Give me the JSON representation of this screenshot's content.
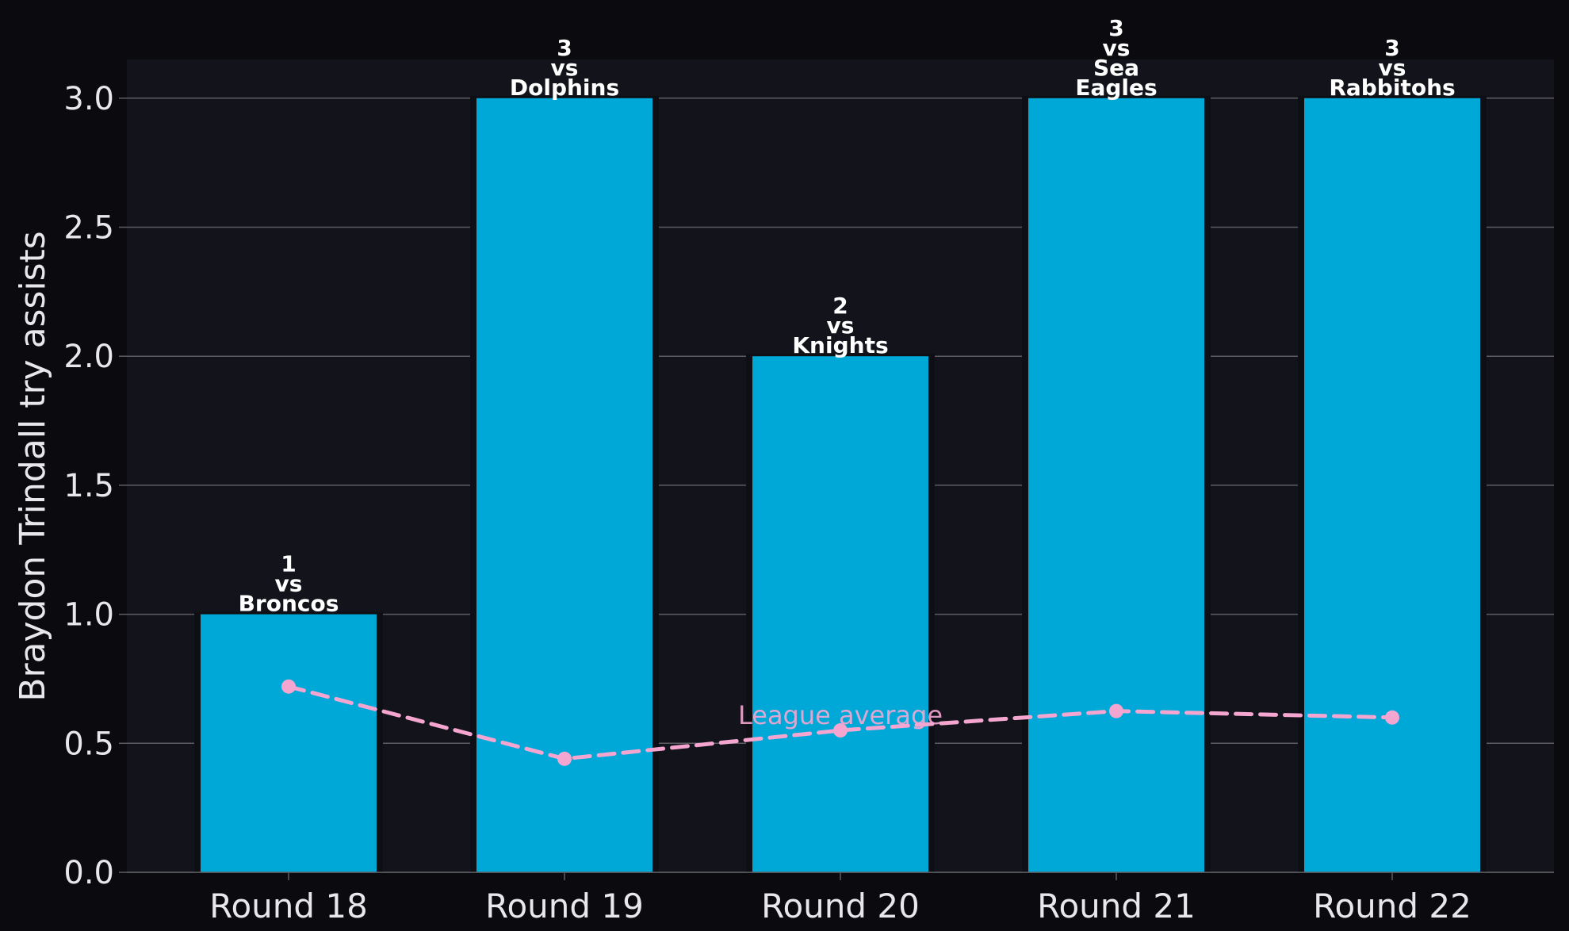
{
  "chart_data": {
    "type": "bar",
    "categories": [
      "Round 18",
      "Round 19",
      "Round 20",
      "Round 21",
      "Round 22"
    ],
    "values": [
      1,
      3,
      2,
      3,
      3
    ],
    "bar_annotations": [
      [
        "1",
        "vs",
        "Broncos"
      ],
      [
        "3",
        "vs",
        "Dolphins"
      ],
      [
        "2",
        "vs",
        "Knights"
      ],
      [
        "3",
        "vs",
        "Sea",
        "Eagles"
      ],
      [
        "3",
        "vs",
        "Rabbitohs"
      ]
    ],
    "series": [
      {
        "name": "League average",
        "type": "line",
        "style": "dashed",
        "values": [
          0.72,
          0.44,
          0.55,
          0.625,
          0.6
        ]
      }
    ],
    "ylabel": "Braydon Trindall try assists",
    "xlabel": "",
    "ylim": [
      0,
      3.15
    ],
    "yticks": [
      "0.0",
      "0.5",
      "1.0",
      "1.5",
      "2.0",
      "2.5",
      "3.0"
    ],
    "grid": "horizontal",
    "colors": {
      "page_background": "#0b0b0f",
      "plot_background": "#13141b",
      "bar": "#00a8d8",
      "line": "#f4a6d0",
      "grid": "#5c5c62",
      "text": "#e8e8ec",
      "annotation": "#ffffff"
    }
  }
}
